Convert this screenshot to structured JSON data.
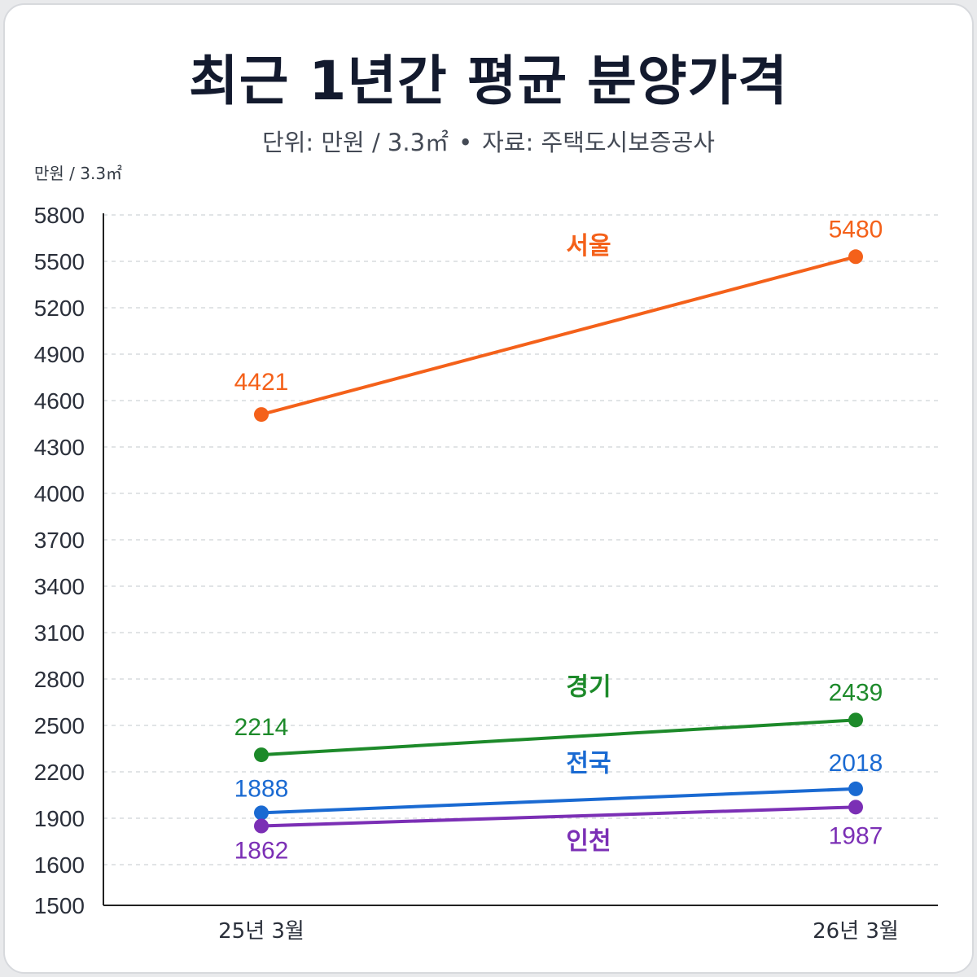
{
  "header": {
    "title": "최근 1년간 평균 분양가격",
    "subtitle_unit": "단위: 만원 / 3.3㎡",
    "subtitle_sep": "•",
    "subtitle_source": "자료: 주택도시보증공사"
  },
  "chart_data": {
    "type": "line",
    "title": "최근 1년간 평균 분양가격",
    "ylabel": "만원 / 3.3㎡",
    "xlabel": "",
    "categories": [
      "25년 3월",
      "26년 3월"
    ],
    "yticks": [
      1500,
      1600,
      1900,
      2200,
      2500,
      2800,
      3100,
      3400,
      3700,
      4000,
      4300,
      4600,
      4900,
      5200,
      5500,
      5800
    ],
    "ylim": [
      1500,
      5800
    ],
    "grid": true,
    "legend": "inline",
    "series": [
      {
        "name": "서울",
        "values": [
          4421,
          5480
        ],
        "plot": [
          4510,
          5530
        ],
        "color": "#f4611a"
      },
      {
        "name": "경기",
        "values": [
          2214,
          2439
        ],
        "plot": [
          2310,
          2535
        ],
        "color": "#1d8a2a"
      },
      {
        "name": "전국",
        "values": [
          1888,
          2018
        ],
        "plot": [
          1935,
          2090
        ],
        "color": "#1a6ad2"
      },
      {
        "name": "인천",
        "values": [
          1862,
          1987
        ],
        "plot": [
          1850,
          1972
        ],
        "color": "#7b2fb5"
      }
    ]
  }
}
